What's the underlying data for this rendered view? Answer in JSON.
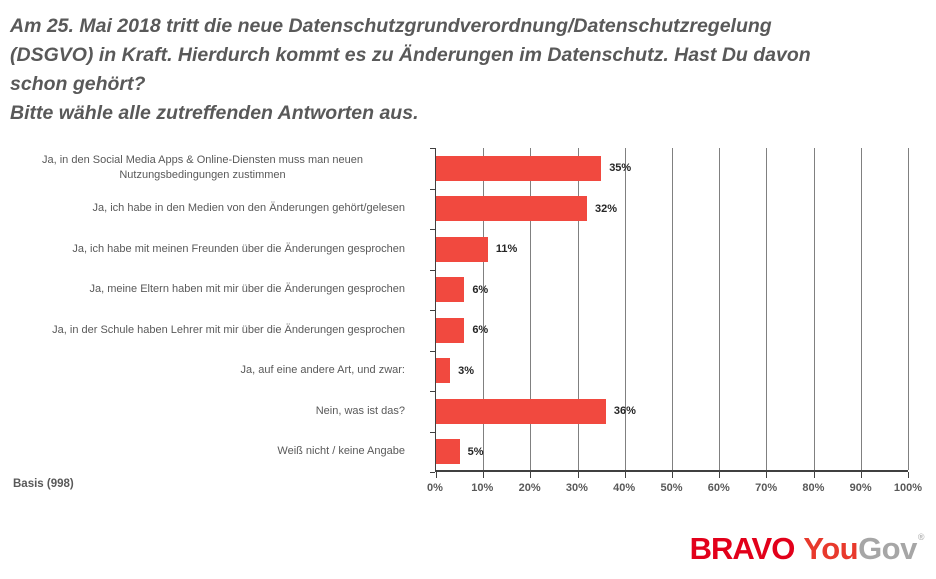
{
  "title": {
    "lines": [
      "Am 25. Mai 2018 tritt die neue Datenschutzgrundverordnung/Datenschutzregelung",
      "(DSGVO) in Kraft. Hierdurch kommt es zu Änderungen im Datenschutz. Hast Du davon",
      "schon gehört?",
      "Bitte wähle alle zutreffenden Antworten aus."
    ]
  },
  "basis": "Basis (998)",
  "footer": {
    "brand_bravo": "BRAVO",
    "brand_you": "You",
    "brand_gov": "Gov",
    "trademark": "®"
  },
  "colors": {
    "bar": "#F1493F",
    "title_text": "#595959",
    "label_text": "#595959",
    "value_text": "#262626",
    "grid": "#808080",
    "axis": "#404040",
    "bravo_red": "#E2001A",
    "you_red": "#E8392C",
    "gov_gray": "#A6A6A6"
  },
  "chart_data": {
    "type": "bar",
    "orientation": "horizontal",
    "title": "Am 25. Mai 2018 tritt die neue Datenschutzgrundverordnung/Datenschutzregelung (DSGVO) in Kraft. Hierdurch kommt es zu Änderungen im Datenschutz. Hast Du davon schon gehört? Bitte wähle alle zutreffenden Antworten aus.",
    "categories": [
      "Ja, in den Social Media Apps & Online-Diensten muss man neuen Nutzungsbedingungen zustimmen",
      "Ja, ich habe in den Medien von den Änderungen gehört/gelesen",
      "Ja, ich habe mit meinen Freunden über die Änderungen gesprochen",
      "Ja, meine Eltern haben mit mir über die Änderungen gesprochen",
      "Ja, in der Schule haben Lehrer mit mir über die Änderungen gesprochen",
      "Ja, auf eine andere Art, und zwar:",
      "Nein, was ist das?",
      "Weiß nicht / keine Angabe"
    ],
    "values": [
      35,
      32,
      11,
      6,
      6,
      3,
      36,
      5
    ],
    "value_suffix": "%",
    "xlim": [
      0,
      100
    ],
    "x_ticks": [
      "0%",
      "10%",
      "20%",
      "30%",
      "40%",
      "50%",
      "60%",
      "70%",
      "80%",
      "90%",
      "100%"
    ],
    "grid": true,
    "legend": "none",
    "bar_color": "#F1493F"
  }
}
